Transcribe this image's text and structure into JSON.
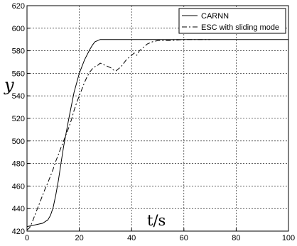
{
  "chart_data": {
    "type": "line",
    "title": "",
    "xlabel": "t/s",
    "ylabel": "y",
    "xlim": [
      0,
      100
    ],
    "ylim": [
      420,
      620
    ],
    "xticks": [
      0,
      20,
      40,
      60,
      80,
      100
    ],
    "yticks": [
      420,
      440,
      460,
      480,
      500,
      520,
      540,
      560,
      580,
      600,
      620
    ],
    "xtick_labels": [
      "0",
      "20",
      "40",
      "60",
      "80",
      "100"
    ],
    "ytick_labels": [
      "420",
      "440",
      "460",
      "480",
      "500",
      "520",
      "540",
      "560",
      "580",
      "600",
      "620"
    ],
    "grid": true,
    "grid_style": "dashed",
    "legend_position": "top-right",
    "series": [
      {
        "name": "CARNN",
        "line_style": "solid",
        "color": "#000000",
        "x": [
          0,
          2,
          4,
          6,
          8,
          9,
          10,
          11,
          12,
          13,
          14,
          16,
          18,
          20,
          22,
          24,
          25,
          26,
          27,
          28,
          30,
          40,
          50,
          60,
          70,
          80,
          90,
          100
        ],
        "y": [
          424,
          425,
          426,
          427,
          430,
          434,
          441,
          452,
          465,
          480,
          495,
          520,
          543,
          560,
          572,
          581,
          585,
          588,
          589,
          590,
          590,
          590,
          590,
          590,
          590,
          590,
          590,
          590
        ]
      },
      {
        "name": "ESC with sliding mode",
        "line_style": "dash-dot",
        "color": "#000000",
        "x": [
          0,
          1,
          2,
          3,
          4,
          5,
          6,
          7,
          8,
          9,
          10,
          11,
          12,
          13,
          14,
          15,
          16,
          17,
          18,
          19,
          20,
          21,
          22,
          23,
          24,
          25,
          26,
          27,
          28,
          29,
          30,
          31,
          32,
          33,
          34,
          35,
          36,
          37,
          38,
          39,
          40,
          41,
          42,
          43,
          44,
          45,
          46,
          47,
          48,
          50,
          55,
          60,
          70
        ],
        "y": [
          421,
          423,
          428,
          434,
          440,
          446,
          452,
          458,
          463,
          469,
          475,
          482,
          488,
          494,
          500,
          506,
          512,
          519,
          527,
          534,
          540,
          546,
          552,
          557,
          561,
          564,
          566,
          567,
          569,
          568,
          567,
          566,
          565,
          563,
          562,
          564,
          566,
          569,
          572,
          574,
          576,
          578,
          576,
          580,
          582,
          584,
          586,
          587,
          588,
          589,
          589,
          590,
          590
        ]
      }
    ]
  }
}
